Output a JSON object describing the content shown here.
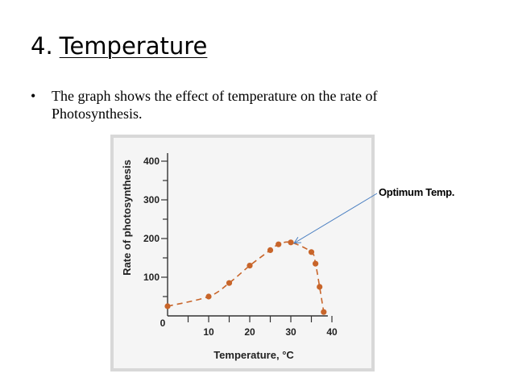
{
  "slide": {
    "title_number": "4.",
    "title_word": "Temperature",
    "bullet": "•",
    "bullet_text": "The graph shows the effect of temperature on the rate of Photosynthesis."
  },
  "annotation": {
    "label": "Optimum Temp."
  },
  "chart_data": {
    "type": "scatter",
    "title": "",
    "xlabel": "Temperature, °C",
    "ylabel": "Rate of photosynthesis",
    "xlim": [
      0,
      40
    ],
    "ylim": [
      0,
      400
    ],
    "x_ticks": [
      10,
      20,
      30,
      40
    ],
    "y_ticks": [
      100,
      200,
      300,
      400
    ],
    "origin_label": "0",
    "grid": false,
    "legend": "none",
    "point_color": "#c8652a",
    "trend_style": "dashed",
    "annotation_target": {
      "x": 30,
      "y": 190
    },
    "series": [
      {
        "x": [
          0,
          10,
          15,
          20,
          25,
          27,
          30,
          35,
          36,
          37,
          38
        ],
        "y": [
          25,
          50,
          85,
          130,
          170,
          185,
          190,
          165,
          135,
          75,
          10
        ]
      }
    ]
  }
}
